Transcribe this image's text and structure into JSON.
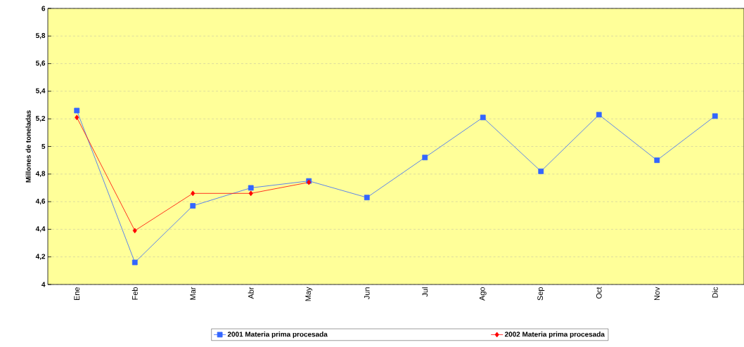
{
  "chart_data": {
    "type": "line",
    "ylabel": "Millones de toneladas",
    "categories": [
      "Ene",
      "Feb",
      "Mar",
      "Abr",
      "May",
      "Jun",
      "Jul",
      "Ago",
      "Sep",
      "Oct",
      "Nov",
      "Dic"
    ],
    "series": [
      {
        "name": "2001 Materia prima procesada",
        "color": "#3366ff",
        "marker": "square",
        "values": [
          5.26,
          4.16,
          4.57,
          4.7,
          4.75,
          4.63,
          4.92,
          5.21,
          4.82,
          5.23,
          4.9,
          5.22
        ]
      },
      {
        "name": "2002 Materia prima procesada",
        "color": "#ff0000",
        "marker": "diamond",
        "values": [
          5.21,
          4.39,
          4.66,
          4.66,
          4.74,
          null,
          null,
          null,
          null,
          null,
          null,
          null
        ]
      }
    ],
    "ylim": [
      4,
      6
    ],
    "yticks": [
      4,
      {
        "value": 4.2,
        "label": "4,2"
      },
      {
        "value": 4.4,
        "label": "4,4"
      },
      {
        "value": 4.6,
        "label": "4,6"
      },
      {
        "value": 4.8,
        "label": "4,8"
      },
      5,
      {
        "value": 5.2,
        "label": "5,2"
      },
      {
        "value": 5.4,
        "label": "5,4"
      },
      {
        "value": 5.6,
        "label": "5,6"
      },
      {
        "value": 5.8,
        "label": "5,8"
      },
      6
    ],
    "grid": "y",
    "legend": "bottom",
    "line_style": "solid"
  }
}
